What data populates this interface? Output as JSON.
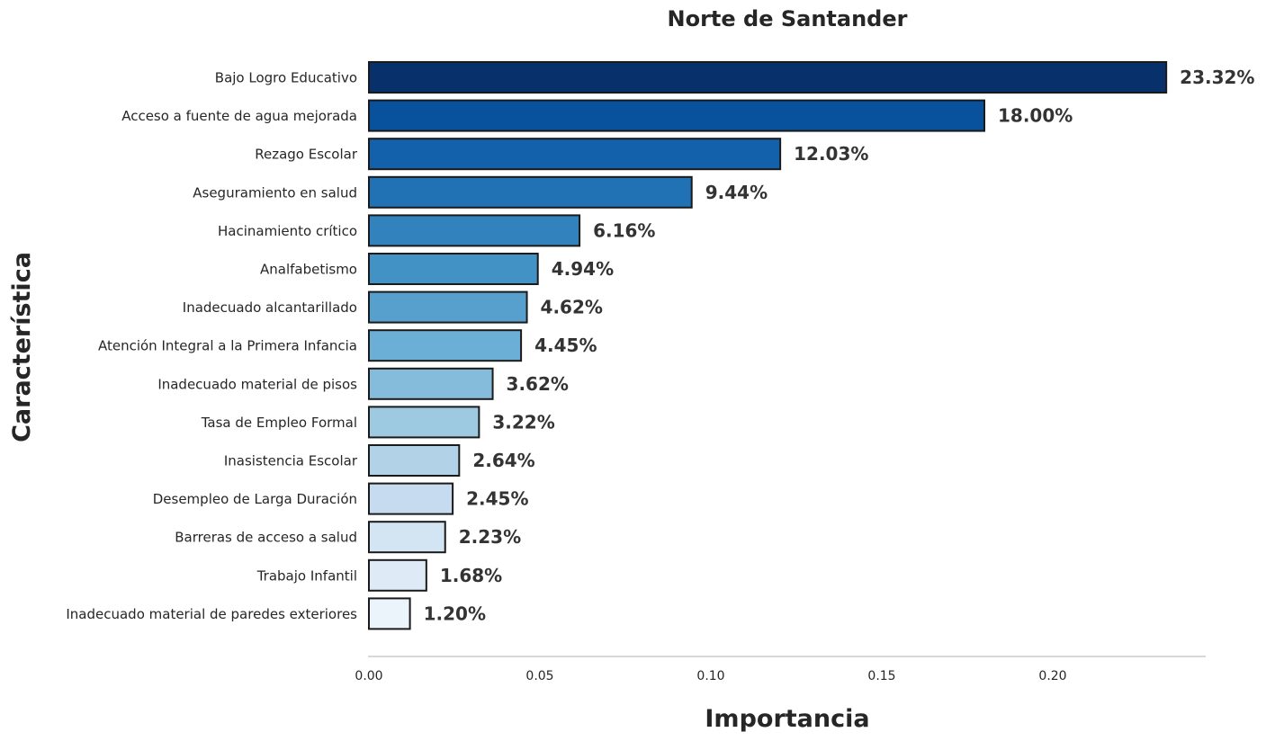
{
  "chart_data": {
    "type": "bar",
    "orientation": "horizontal",
    "title": "Norte de Santander",
    "xlabel": "Importancia",
    "ylabel": "Característica",
    "categories": [
      "Bajo Logro Educativo",
      "Acceso a fuente de agua mejorada",
      "Rezago Escolar",
      "Aseguramiento en salud",
      "Hacinamiento crítico",
      "Analfabetismo",
      "Inadecuado alcantarillado",
      "Atención Integral a la Primera Infancia",
      "Inadecuado material de pisos",
      "Tasa de Empleo Formal",
      "Inasistencia Escolar",
      "Desempleo de Larga Duración",
      "Barreras de acceso a salud",
      "Trabajo Infantil",
      "Inadecuado material de paredes exteriores"
    ],
    "values": [
      0.2332,
      0.18,
      0.1203,
      0.0944,
      0.0616,
      0.0494,
      0.0462,
      0.0445,
      0.0362,
      0.0322,
      0.0264,
      0.0245,
      0.0223,
      0.0168,
      0.012
    ],
    "value_labels": [
      "23.32%",
      "18.00%",
      "12.03%",
      "9.44%",
      "6.16%",
      "4.94%",
      "4.62%",
      "4.45%",
      "3.62%",
      "3.22%",
      "2.64%",
      "2.45%",
      "2.23%",
      "1.68%",
      "1.20%"
    ],
    "xlim": [
      0,
      0.245
    ],
    "xticks": [
      0.0,
      0.05,
      0.1,
      0.15,
      0.2
    ],
    "xtick_labels": [
      "0.00",
      "0.05",
      "0.10",
      "0.15",
      "0.20"
    ],
    "colors": [
      "#08306b",
      "#08519c",
      "#1361ab",
      "#2171b5",
      "#3282be",
      "#4292c6",
      "#57a0ce",
      "#6baed6",
      "#85bcdc",
      "#9ecae1",
      "#b2d2e8",
      "#c6dbef",
      "#d3e4f3",
      "#deebf7",
      "#ebf3fb"
    ],
    "edge_color": "#1a1a1a",
    "grid": false,
    "legend": "none"
  }
}
